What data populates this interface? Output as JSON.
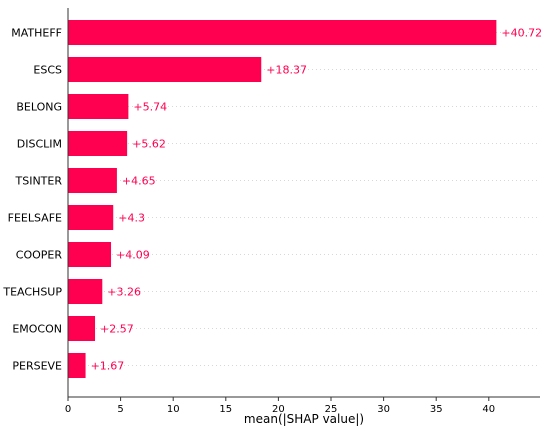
{
  "chart_data": {
    "type": "bar",
    "orientation": "horizontal",
    "categories": [
      "MATHEFF",
      "ESCS",
      "BELONG",
      "DISCLIM",
      "TSINTER",
      "FEELSAFE",
      "COOPER",
      "TEACHSUP",
      "EMOCON",
      "PERSEVE"
    ],
    "values": [
      40.72,
      18.37,
      5.74,
      5.62,
      4.65,
      4.3,
      4.09,
      3.26,
      2.57,
      1.67
    ],
    "value_labels": [
      "+40.72",
      "+18.37",
      "+5.74",
      "+5.62",
      "+4.65",
      "+4.3",
      "+4.09",
      "+3.26",
      "+2.57",
      "+1.67"
    ],
    "xlabel": "mean(|SHAP value|)",
    "ylabel": "",
    "xlim": [
      0,
      45
    ],
    "xticks": [
      0,
      5,
      10,
      15,
      20,
      25,
      30,
      35,
      40
    ],
    "grid": "horizontal dotted row separators",
    "bar_color": "#ff0051",
    "label_color": "#ff0051"
  }
}
